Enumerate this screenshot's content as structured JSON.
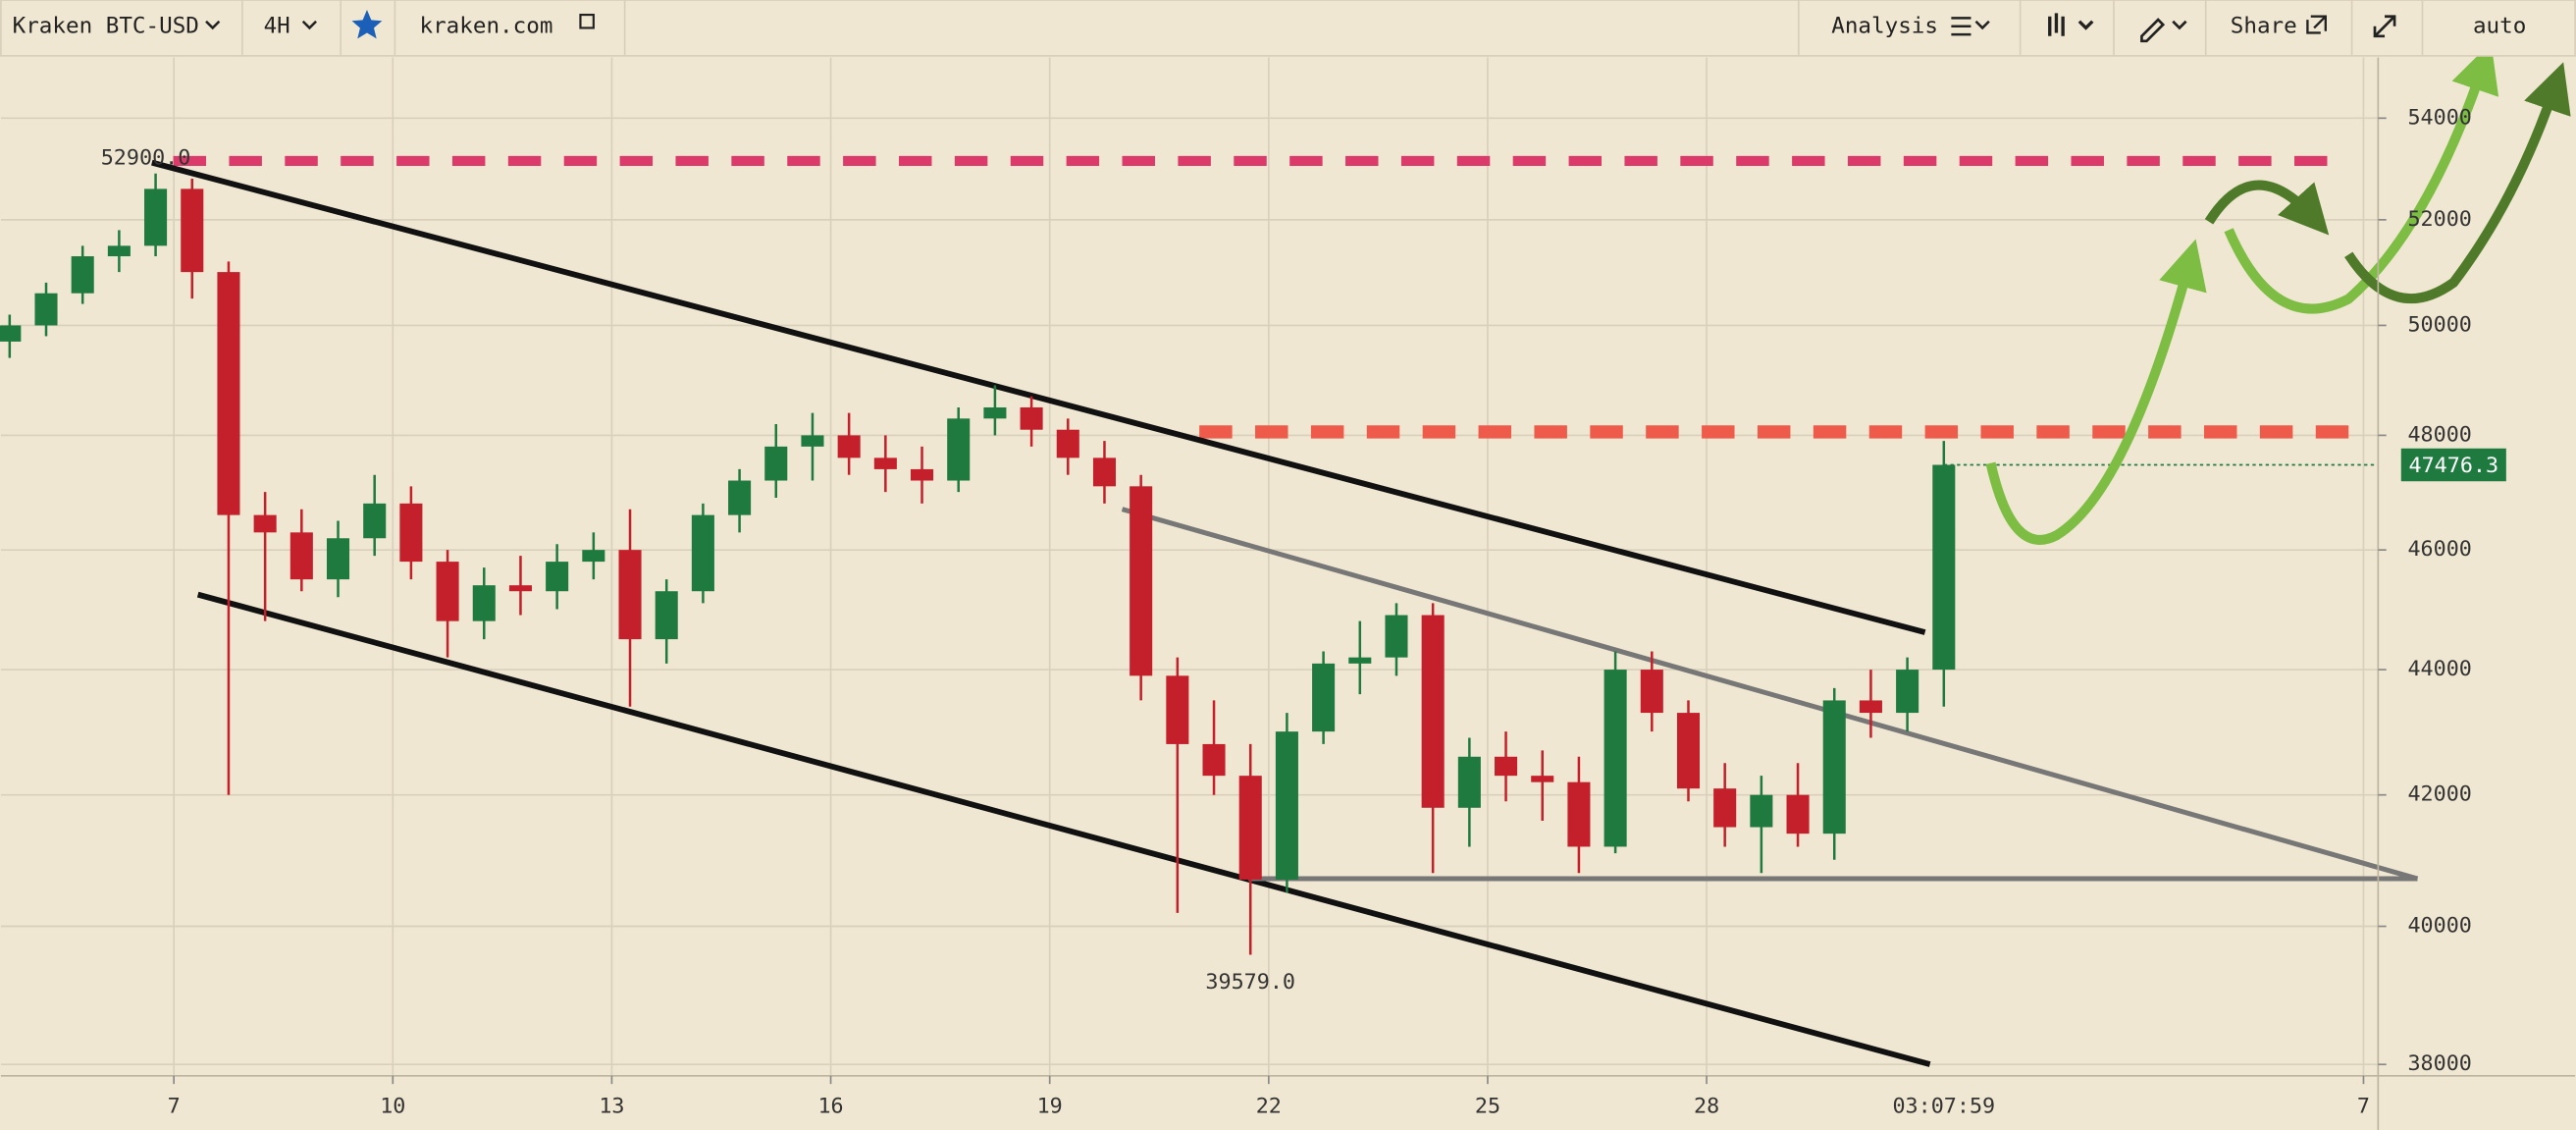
{
  "toolbar": {
    "symbol": "Kraken BTC-USD",
    "interval": "4H",
    "source": "kraken.com",
    "analysis": "Analysis",
    "share": "Share",
    "scale_mode": "auto"
  },
  "chart_data": {
    "type": "candlestick",
    "x": [
      4.75,
      5.25,
      5.75,
      6.25,
      6.75,
      7.25,
      7.75,
      8.25,
      8.75,
      9.25,
      9.75,
      10.25,
      10.75,
      11.25,
      11.75,
      12.25,
      12.75,
      13.25,
      13.75,
      14.25,
      14.75,
      15.25,
      15.75,
      16.25,
      16.75,
      17.25,
      17.75,
      18.25,
      18.75,
      19.25,
      19.75,
      20.25,
      20.75,
      21.25,
      21.75,
      22.25,
      22.75,
      23.25,
      23.75,
      24.25,
      24.75,
      25.25,
      25.75,
      26.25,
      26.75,
      27.25,
      27.75,
      28.25,
      28.75,
      29.25,
      29.75,
      30.25,
      30.75,
      31.25
    ],
    "open": [
      49700,
      50000,
      50600,
      51300,
      51500,
      52600,
      51000,
      46600,
      46300,
      45500,
      46200,
      46800,
      45800,
      44800,
      45400,
      45300,
      45800,
      46000,
      44500,
      45300,
      46600,
      47200,
      47800,
      48000,
      47600,
      47400,
      47200,
      48300,
      48500,
      48100,
      47600,
      47100,
      43900,
      42800,
      42300,
      40700,
      43000,
      44100,
      44200,
      44900,
      41800,
      42600,
      42300,
      42200,
      41200,
      44000,
      43300,
      42100,
      41500,
      42000,
      41400,
      43500,
      43300,
      44000
    ],
    "high": [
      50200,
      50800,
      51500,
      51800,
      52900,
      52800,
      51200,
      47000,
      46700,
      46500,
      47300,
      47100,
      46000,
      45700,
      45900,
      46100,
      46300,
      46700,
      45500,
      46800,
      47400,
      48200,
      48400,
      48400,
      48000,
      47800,
      48500,
      48900,
      48700,
      48300,
      47900,
      47300,
      44200,
      43500,
      42800,
      43300,
      44300,
      44800,
      45100,
      45100,
      42900,
      43000,
      42700,
      42600,
      44300,
      44300,
      43500,
      42500,
      42300,
      42500,
      43700,
      44000,
      44200,
      47900
    ],
    "low": [
      49400,
      49800,
      50400,
      51000,
      51300,
      50500,
      42000,
      44800,
      45300,
      45200,
      45900,
      45500,
      44200,
      44500,
      44900,
      45000,
      45500,
      43400,
      44100,
      45100,
      46300,
      46900,
      47200,
      47300,
      47000,
      46800,
      47000,
      48000,
      47800,
      47300,
      46800,
      43500,
      40200,
      42000,
      39579,
      40500,
      42800,
      43600,
      43900,
      40800,
      41200,
      41900,
      41600,
      40800,
      41100,
      43000,
      41900,
      41200,
      40800,
      41200,
      41000,
      42900,
      43000,
      43400
    ],
    "close": [
      50000,
      50600,
      51300,
      51500,
      52600,
      51000,
      46600,
      46300,
      45500,
      46200,
      46800,
      45800,
      44800,
      45400,
      45300,
      45800,
      46000,
      44500,
      45300,
      46600,
      47200,
      47800,
      48000,
      47600,
      47400,
      47200,
      48300,
      48500,
      48100,
      47600,
      47100,
      43900,
      42800,
      42300,
      40700,
      43000,
      44100,
      44200,
      44900,
      41800,
      42600,
      42300,
      42200,
      41200,
      44000,
      43300,
      42100,
      41500,
      42000,
      41400,
      43500,
      43300,
      44000,
      47476.3
    ],
    "up_color": "#1f7a3f",
    "down_color": "#c4202b",
    "xlim": [
      4.63,
      37.2
    ],
    "xticks": [
      7,
      10,
      13,
      16,
      19,
      22,
      25,
      28,
      {
        "value": 37,
        "label": "7"
      }
    ],
    "ylim": [
      37840,
      55230
    ],
    "yticks": [
      38000,
      40000,
      42000,
      44000,
      46000,
      48000,
      50000,
      52000,
      54000
    ],
    "yscale": "log",
    "grid": true,
    "high_label": "52900.0",
    "low_label": "39579.0",
    "last_price": 47476.3,
    "last_price_color": "#1f7a3f",
    "countdown": "03:07:59"
  }
}
